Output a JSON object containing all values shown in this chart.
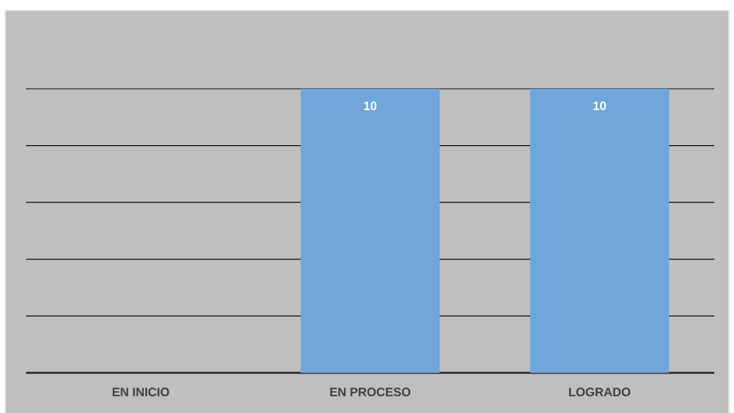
{
  "chart_data": {
    "type": "bar",
    "categories": [
      "EN INICIO",
      "EN PROCESO",
      "LOGRADO"
    ],
    "values": [
      0,
      10,
      10
    ],
    "value_labels": [
      null,
      "10",
      "10"
    ],
    "color": "#70a6d9",
    "ylim": [
      0,
      10
    ],
    "yticks": [
      {
        "value": 0,
        "label": null
      },
      {
        "value": 2,
        "label": null
      },
      {
        "value": 4,
        "label": null
      },
      {
        "value": 6,
        "label": null
      },
      {
        "value": 8,
        "label": null
      },
      {
        "value": 10,
        "label": null
      }
    ],
    "grid": "y",
    "tick_labels": "x"
  }
}
